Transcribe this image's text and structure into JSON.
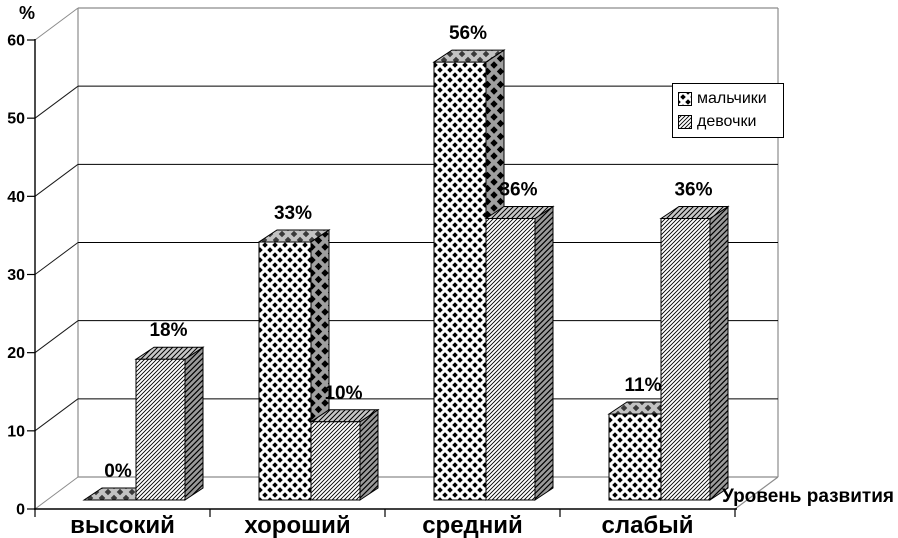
{
  "chart_data": {
    "type": "bar",
    "style": "3d-clustered-columns",
    "categories": [
      "высокий",
      "хороший",
      "средний",
      "слабый"
    ],
    "series": [
      {
        "name": "мальчики",
        "pattern": "diamond-check",
        "values": [
          0,
          33,
          56,
          11
        ],
        "data_labels": [
          "0%",
          "33%",
          "56%",
          "11%"
        ]
      },
      {
        "name": "девочки",
        "pattern": "diagonal-hatch",
        "values": [
          18,
          10,
          36,
          36
        ],
        "data_labels": [
          "18%",
          "10%",
          "36%",
          "36%"
        ]
      }
    ],
    "ylabel": "%",
    "xlabel": "Уровень развития",
    "ylim": [
      0,
      60
    ],
    "yticks": [
      0,
      10,
      20,
      30,
      40,
      50,
      60
    ],
    "grid": "horizontal",
    "legend_position": "right-top",
    "colors": {
      "foreground": "#000000",
      "background": "#ffffff",
      "wall_edge": "#8c8c8c",
      "bar_side_gray": "#9f9f9f",
      "bar_top_gray": "#c2c2c2"
    }
  }
}
